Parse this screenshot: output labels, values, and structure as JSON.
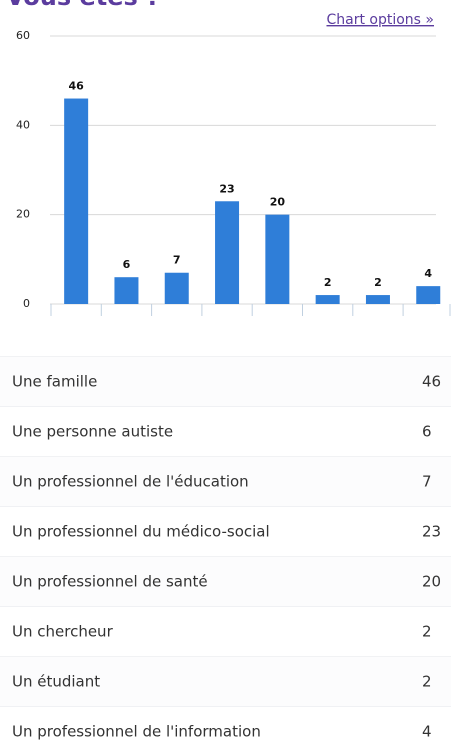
{
  "title": "Vous êtes ?",
  "link": "Chart options »",
  "chart_data": {
    "type": "bar",
    "categories": [
      "Une famille",
      "Une personne autiste",
      "Un professionnel de l'éducation",
      "Un professionnel du médico-social",
      "Un professionnel de santé",
      "Un chercheur",
      "Un étudiant",
      "Un professionnel de l'information"
    ],
    "values": [
      46,
      6,
      7,
      23,
      20,
      2,
      2,
      4
    ],
    "color": "#2f7ed8",
    "ylim": [
      0,
      60
    ],
    "yticks": [
      0,
      20,
      40,
      60
    ],
    "grid": true
  }
}
